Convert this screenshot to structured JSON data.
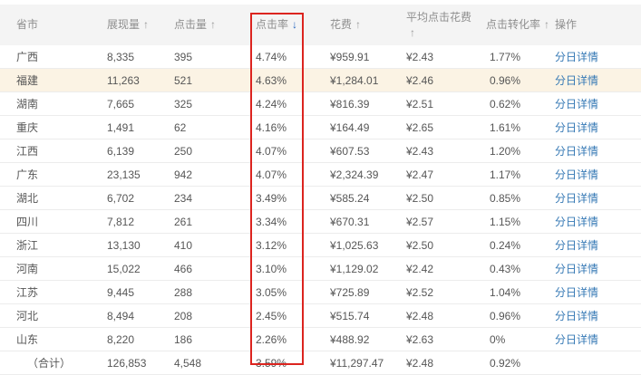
{
  "table": {
    "columns": [
      {
        "label": "省市",
        "sort_icon": "",
        "sort": null
      },
      {
        "label": "展现量",
        "sort_icon": "↑",
        "sort": "asc"
      },
      {
        "label": "点击量",
        "sort_icon": "↑",
        "sort": "asc"
      },
      {
        "label": "点击率",
        "sort_icon": "↓",
        "sort": "desc"
      },
      {
        "label": "花费",
        "sort_icon": "↑",
        "sort": "asc"
      },
      {
        "label": "平均点击花费",
        "sort_icon": "↑",
        "sort": "asc"
      },
      {
        "label": "点击转化率",
        "sort_icon": "↑",
        "sort": "asc"
      },
      {
        "label": "操作",
        "sort_icon": "",
        "sort": null
      }
    ],
    "highlighted_row_index": 1,
    "rows": [
      {
        "province": "广西",
        "impressions": "8,335",
        "clicks": "395",
        "ctr": "4.74%",
        "cost": "¥959.91",
        "avg_cpc": "¥2.43",
        "cvr": "1.77%",
        "action": "分日详情",
        "is_total": false
      },
      {
        "province": "福建",
        "impressions": "11,263",
        "clicks": "521",
        "ctr": "4.63%",
        "cost": "¥1,284.01",
        "avg_cpc": "¥2.46",
        "cvr": "0.96%",
        "action": "分日详情",
        "is_total": false
      },
      {
        "province": "湖南",
        "impressions": "7,665",
        "clicks": "325",
        "ctr": "4.24%",
        "cost": "¥816.39",
        "avg_cpc": "¥2.51",
        "cvr": "0.62%",
        "action": "分日详情",
        "is_total": false
      },
      {
        "province": "重庆",
        "impressions": "1,491",
        "clicks": "62",
        "ctr": "4.16%",
        "cost": "¥164.49",
        "avg_cpc": "¥2.65",
        "cvr": "1.61%",
        "action": "分日详情",
        "is_total": false
      },
      {
        "province": "江西",
        "impressions": "6,139",
        "clicks": "250",
        "ctr": "4.07%",
        "cost": "¥607.53",
        "avg_cpc": "¥2.43",
        "cvr": "1.20%",
        "action": "分日详情",
        "is_total": false
      },
      {
        "province": "广东",
        "impressions": "23,135",
        "clicks": "942",
        "ctr": "4.07%",
        "cost": "¥2,324.39",
        "avg_cpc": "¥2.47",
        "cvr": "1.17%",
        "action": "分日详情",
        "is_total": false
      },
      {
        "province": "湖北",
        "impressions": "6,702",
        "clicks": "234",
        "ctr": "3.49%",
        "cost": "¥585.24",
        "avg_cpc": "¥2.50",
        "cvr": "0.85%",
        "action": "分日详情",
        "is_total": false
      },
      {
        "province": "四川",
        "impressions": "7,812",
        "clicks": "261",
        "ctr": "3.34%",
        "cost": "¥670.31",
        "avg_cpc": "¥2.57",
        "cvr": "1.15%",
        "action": "分日详情",
        "is_total": false
      },
      {
        "province": "浙江",
        "impressions": "13,130",
        "clicks": "410",
        "ctr": "3.12%",
        "cost": "¥1,025.63",
        "avg_cpc": "¥2.50",
        "cvr": "0.24%",
        "action": "分日详情",
        "is_total": false
      },
      {
        "province": "河南",
        "impressions": "15,022",
        "clicks": "466",
        "ctr": "3.10%",
        "cost": "¥1,129.02",
        "avg_cpc": "¥2.42",
        "cvr": "0.43%",
        "action": "分日详情",
        "is_total": false
      },
      {
        "province": "江苏",
        "impressions": "9,445",
        "clicks": "288",
        "ctr": "3.05%",
        "cost": "¥725.89",
        "avg_cpc": "¥2.52",
        "cvr": "1.04%",
        "action": "分日详情",
        "is_total": false
      },
      {
        "province": "河北",
        "impressions": "8,494",
        "clicks": "208",
        "ctr": "2.45%",
        "cost": "¥515.74",
        "avg_cpc": "¥2.48",
        "cvr": "0.96%",
        "action": "分日详情",
        "is_total": false
      },
      {
        "province": "山东",
        "impressions": "8,220",
        "clicks": "186",
        "ctr": "2.26%",
        "cost": "¥488.92",
        "avg_cpc": "¥2.63",
        "cvr": "0%",
        "action": "分日详情",
        "is_total": false
      },
      {
        "province": "（合计）",
        "impressions": "126,853",
        "clicks": "4,548",
        "ctr": "3.59%",
        "cost": "¥11,297.47",
        "avg_cpc": "¥2.48",
        "cvr": "0.92%",
        "action": "",
        "is_total": true
      }
    ]
  },
  "annotation": {
    "highlighted_column": "点击率",
    "box_color": "#dc241f"
  },
  "colors": {
    "header_bg": "#f4f4f4",
    "header_text": "#8e8e8e",
    "body_text": "#565656",
    "highlight_row_bg": "#fbf3e4",
    "link": "#3679b5",
    "sort_active": "#2465c0",
    "sort_inactive": "#9b9b9b",
    "row_border": "#ececec"
  }
}
